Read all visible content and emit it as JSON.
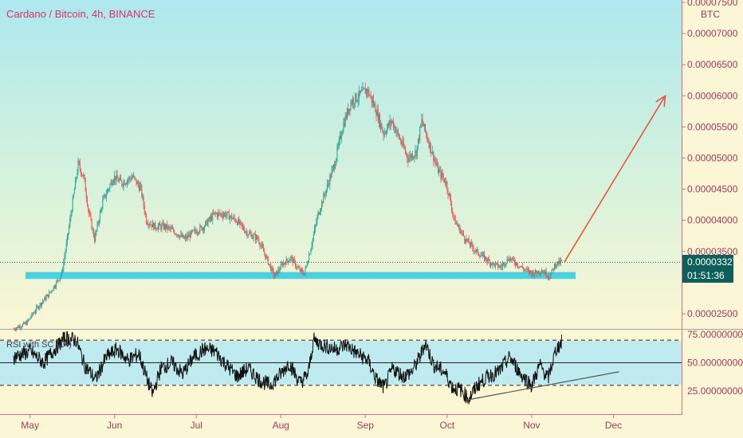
{
  "header": {
    "title": "Cardano / Bitcoin, 4h, BINANCE"
  },
  "price_axis": {
    "unit": "BTC",
    "ticks": [
      "0.00007500",
      "0.00007000",
      "0.00006500",
      "0.00006000",
      "0.00005500",
      "0.00005000",
      "0.00004500",
      "0.00004000",
      "0.00003500",
      "0.00002500"
    ]
  },
  "rsi_panel": {
    "title": "RSI with SC (14)",
    "ticks": [
      "75.00000000",
      "50.00000000",
      "25.00000000"
    ]
  },
  "price_label": {
    "value": "0.00003327",
    "countdown": "01:51:36"
  },
  "colors": {
    "up": "#26a69a",
    "down": "#ef5350",
    "support_zone": "#4dd0e1",
    "arrow": "#e8553d",
    "price_tag_bg": "#0e5f5a",
    "axis_text": "#9a3b58",
    "title": "#d6336c"
  },
  "chart_data": [
    {
      "type": "candlestick",
      "title": "Cardano / Bitcoin, 4h, BINANCE",
      "xlabel": "",
      "ylabel": "BTC",
      "x_ticks": [
        "May",
        "Jun",
        "Jul",
        "Aug",
        "Sep",
        "Oct",
        "Nov",
        "Dec"
      ],
      "ylim": [
        2.1e-05,
        7.6e-05
      ],
      "series": [
        {
          "points": [
            [
              "2020-04-25",
              2.25e-05
            ],
            [
              "2020-04-30",
              2.35e-05
            ],
            [
              "2020-05-04",
              2.6e-05
            ],
            [
              "2020-05-08",
              2.8e-05
            ],
            [
              "2020-05-11",
              3e-05
            ],
            [
              "2020-05-13",
              3.15e-05
            ],
            [
              "2020-05-15",
              3.7e-05
            ],
            [
              "2020-05-17",
              4.3e-05
            ],
            [
              "2020-05-19",
              4.9e-05
            ],
            [
              "2020-05-21",
              4.7e-05
            ],
            [
              "2020-05-23",
              4.1e-05
            ],
            [
              "2020-05-25",
              3.7e-05
            ],
            [
              "2020-05-28",
              4.3e-05
            ],
            [
              "2020-06-01",
              4.7e-05
            ],
            [
              "2020-06-04",
              4.6e-05
            ],
            [
              "2020-06-08",
              4.7e-05
            ],
            [
              "2020-06-11",
              4.5e-05
            ],
            [
              "2020-06-13",
              4e-05
            ],
            [
              "2020-06-16",
              3.9e-05
            ],
            [
              "2020-06-20",
              3.9e-05
            ],
            [
              "2020-06-24",
              3.8e-05
            ],
            [
              "2020-06-27",
              3.7e-05
            ],
            [
              "2020-06-30",
              3.8e-05
            ],
            [
              "2020-07-04",
              3.9e-05
            ],
            [
              "2020-07-08",
              4.1e-05
            ],
            [
              "2020-07-12",
              4.1e-05
            ],
            [
              "2020-07-16",
              4e-05
            ],
            [
              "2020-07-20",
              3.8e-05
            ],
            [
              "2020-07-24",
              3.7e-05
            ],
            [
              "2020-07-27",
              3.4e-05
            ],
            [
              "2020-07-30",
              3.1e-05
            ],
            [
              "2020-08-02",
              3.3e-05
            ],
            [
              "2020-08-05",
              3.4e-05
            ],
            [
              "2020-08-08",
              3.2e-05
            ],
            [
              "2020-08-10",
              3.15e-05
            ],
            [
              "2020-08-12",
              3.5e-05
            ],
            [
              "2020-08-15",
              4.1e-05
            ],
            [
              "2020-08-18",
              4.5e-05
            ],
            [
              "2020-08-21",
              4.9e-05
            ],
            [
              "2020-08-24",
              5.5e-05
            ],
            [
              "2020-08-27",
              5.9e-05
            ],
            [
              "2020-08-30",
              6e-05
            ],
            [
              "2020-09-02",
              6.1e-05
            ],
            [
              "2020-09-05",
              5.8e-05
            ],
            [
              "2020-09-08",
              5.4e-05
            ],
            [
              "2020-09-11",
              5.6e-05
            ],
            [
              "2020-09-14",
              5.3e-05
            ],
            [
              "2020-09-17",
              5e-05
            ],
            [
              "2020-09-20",
              5.1e-05
            ],
            [
              "2020-09-22",
              5.6e-05
            ],
            [
              "2020-09-25",
              5.2e-05
            ],
            [
              "2020-09-28",
              4.8e-05
            ],
            [
              "2020-10-01",
              4.6e-05
            ],
            [
              "2020-10-04",
              4e-05
            ],
            [
              "2020-10-08",
              3.7e-05
            ],
            [
              "2020-10-12",
              3.5e-05
            ],
            [
              "2020-10-15",
              3.4e-05
            ],
            [
              "2020-10-18",
              3.3e-05
            ],
            [
              "2020-10-21",
              3.25e-05
            ],
            [
              "2020-10-24",
              3.4e-05
            ],
            [
              "2020-10-27",
              3.3e-05
            ],
            [
              "2020-10-30",
              3.2e-05
            ],
            [
              "2020-11-02",
              3.15e-05
            ],
            [
              "2020-11-05",
              3.2e-05
            ],
            [
              "2020-11-08",
              3.1e-05
            ],
            [
              "2020-11-10",
              3.3e-05
            ],
            [
              "2020-11-12",
              3.327e-05
            ]
          ]
        }
      ],
      "annotations": {
        "support_zone": [
          3.06e-05,
          3.17e-05
        ],
        "projection_arrow": {
          "from": [
            "2020-11-13",
            3.33e-05
          ],
          "to": [
            "2020-12-20",
            6e-05
          ]
        }
      }
    },
    {
      "type": "line",
      "title": "RSI with SC (14)",
      "ylim": [
        8,
        80
      ],
      "levels": [
        70,
        50,
        30
      ],
      "series": [
        {
          "points": [
            [
              "2020-04-25",
              55
            ],
            [
              "2020-05-01",
              60
            ],
            [
              "2020-05-06",
              50
            ],
            [
              "2020-05-10",
              62
            ],
            [
              "2020-05-14",
              72
            ],
            [
              "2020-05-18",
              70
            ],
            [
              "2020-05-21",
              48
            ],
            [
              "2020-05-25",
              35
            ],
            [
              "2020-05-29",
              55
            ],
            [
              "2020-06-02",
              62
            ],
            [
              "2020-06-06",
              52
            ],
            [
              "2020-06-10",
              58
            ],
            [
              "2020-06-13",
              35
            ],
            [
              "2020-06-15",
              22
            ],
            [
              "2020-06-18",
              45
            ],
            [
              "2020-06-22",
              50
            ],
            [
              "2020-06-26",
              40
            ],
            [
              "2020-06-30",
              55
            ],
            [
              "2020-07-04",
              62
            ],
            [
              "2020-07-08",
              60
            ],
            [
              "2020-07-12",
              48
            ],
            [
              "2020-07-16",
              38
            ],
            [
              "2020-07-20",
              45
            ],
            [
              "2020-07-24",
              35
            ],
            [
              "2020-07-28",
              30
            ],
            [
              "2020-08-01",
              40
            ],
            [
              "2020-08-04",
              50
            ],
            [
              "2020-08-08",
              32
            ],
            [
              "2020-08-11",
              40
            ],
            [
              "2020-08-13",
              70
            ],
            [
              "2020-08-17",
              65
            ],
            [
              "2020-08-21",
              62
            ],
            [
              "2020-08-25",
              66
            ],
            [
              "2020-08-29",
              58
            ],
            [
              "2020-09-02",
              52
            ],
            [
              "2020-09-05",
              35
            ],
            [
              "2020-09-08",
              28
            ],
            [
              "2020-09-11",
              45
            ],
            [
              "2020-09-15",
              38
            ],
            [
              "2020-09-18",
              42
            ],
            [
              "2020-09-21",
              55
            ],
            [
              "2020-09-23",
              68
            ],
            [
              "2020-09-26",
              48
            ],
            [
              "2020-09-30",
              42
            ],
            [
              "2020-10-03",
              28
            ],
            [
              "2020-10-06",
              26
            ],
            [
              "2020-10-09",
              18
            ],
            [
              "2020-10-12",
              30
            ],
            [
              "2020-10-16",
              38
            ],
            [
              "2020-10-20",
              42
            ],
            [
              "2020-10-24",
              55
            ],
            [
              "2020-10-28",
              40
            ],
            [
              "2020-11-01",
              30
            ],
            [
              "2020-11-04",
              48
            ],
            [
              "2020-11-07",
              36
            ],
            [
              "2020-11-10",
              62
            ],
            [
              "2020-11-12",
              68
            ]
          ]
        }
      ],
      "annotations": {
        "trendline": {
          "from": [
            "2020-10-08",
            17
          ],
          "to": [
            "2020-12-03",
            42
          ]
        }
      }
    }
  ]
}
